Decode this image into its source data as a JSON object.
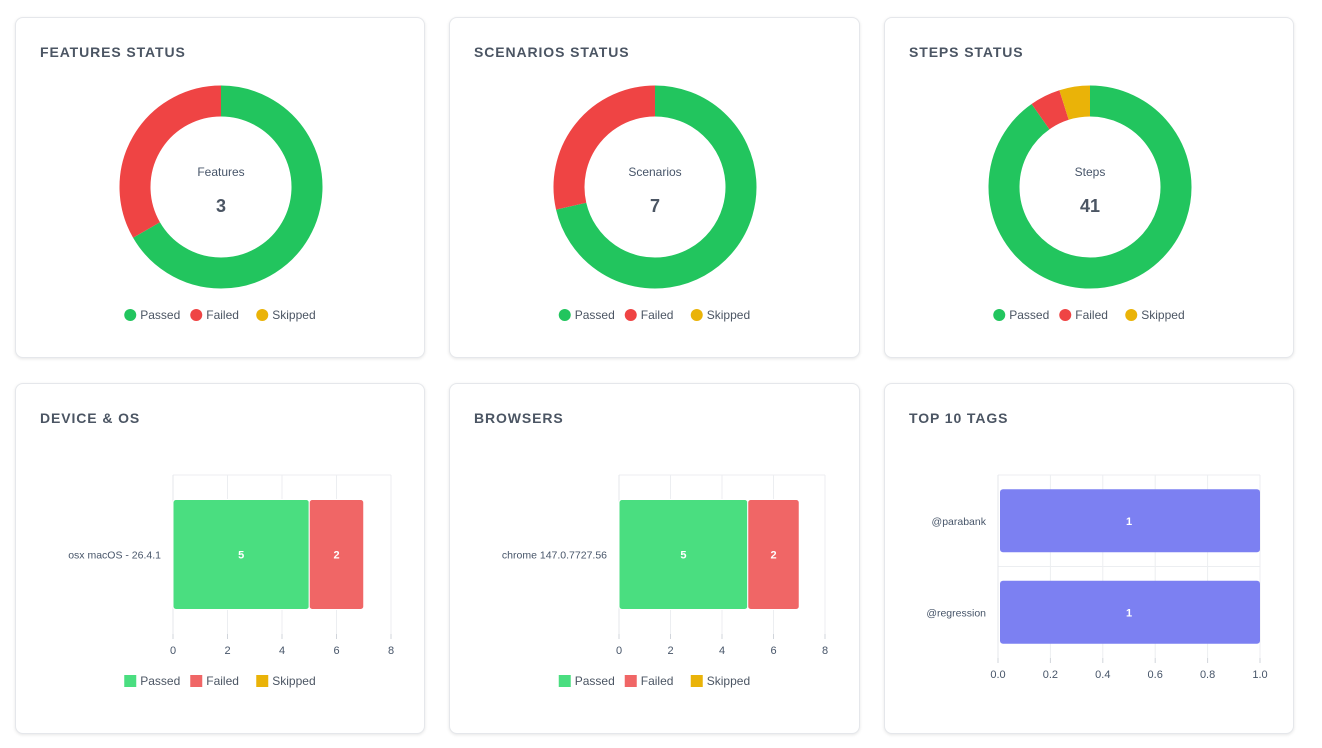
{
  "legend": [
    "Passed",
    "Failed",
    "Skipped"
  ],
  "colors": {
    "donut": {
      "Passed": "#22c55e",
      "Failed": "#ef4444",
      "Skipped": "#eab308"
    },
    "bar": {
      "Passed": "#4ade80",
      "Failed": "#f06666",
      "Skipped": "#eab308"
    },
    "tags": "#7c80f2"
  },
  "features": {
    "title": "FEATURES STATUS",
    "chart_data": {
      "type": "pie",
      "center_label": "Features",
      "total": "3",
      "slices": [
        {
          "name": "Passed",
          "value": 2
        },
        {
          "name": "Failed",
          "value": 1
        },
        {
          "name": "Skipped",
          "value": 0
        }
      ]
    }
  },
  "scenarios": {
    "title": "SCENARIOS STATUS",
    "chart_data": {
      "type": "pie",
      "center_label": "Scenarios",
      "total": "7",
      "slices": [
        {
          "name": "Passed",
          "value": 5
        },
        {
          "name": "Failed",
          "value": 2
        },
        {
          "name": "Skipped",
          "value": 0
        }
      ]
    }
  },
  "steps": {
    "title": "STEPS STATUS",
    "chart_data": {
      "type": "pie",
      "center_label": "Steps",
      "total": "41",
      "slices": [
        {
          "name": "Passed",
          "value": 37
        },
        {
          "name": "Failed",
          "value": 2
        },
        {
          "name": "Skipped",
          "value": 2
        }
      ]
    }
  },
  "device": {
    "title": "DEVICE & OS",
    "chart_data": {
      "type": "bar",
      "orientation": "horizontal",
      "stacked": true,
      "categories": [
        "osx macOS - 26.4.1"
      ],
      "series": [
        {
          "name": "Passed",
          "values": [
            5
          ]
        },
        {
          "name": "Failed",
          "values": [
            2
          ]
        },
        {
          "name": "Skipped",
          "values": [
            0
          ]
        }
      ],
      "xlim": [
        0,
        8
      ],
      "xticks": [
        "0",
        "2",
        "4",
        "6",
        "8"
      ]
    }
  },
  "browsers": {
    "title": "BROWSERS",
    "chart_data": {
      "type": "bar",
      "orientation": "horizontal",
      "stacked": true,
      "categories": [
        "chrome 147.0.7727.56"
      ],
      "series": [
        {
          "name": "Passed",
          "values": [
            5
          ]
        },
        {
          "name": "Failed",
          "values": [
            2
          ]
        },
        {
          "name": "Skipped",
          "values": [
            0
          ]
        }
      ],
      "xlim": [
        0,
        8
      ],
      "xticks": [
        "0",
        "2",
        "4",
        "6",
        "8"
      ]
    }
  },
  "tags": {
    "title": "TOP 10 TAGS",
    "chart_data": {
      "type": "bar",
      "orientation": "horizontal",
      "categories": [
        "@parabank",
        "@regression"
      ],
      "values": [
        1,
        1
      ],
      "xlim": [
        0,
        1
      ],
      "xticks": [
        "0.0",
        "0.2",
        "0.4",
        "0.6",
        "0.8",
        "1.0"
      ]
    }
  }
}
